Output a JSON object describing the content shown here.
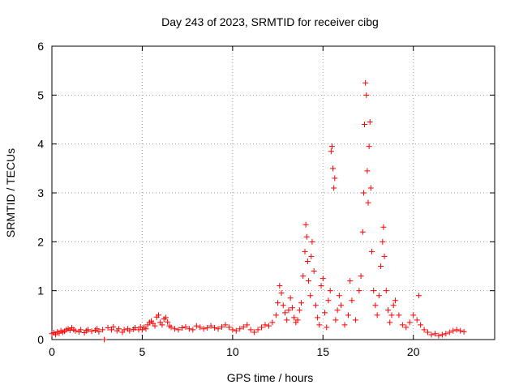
{
  "chart_data": {
    "type": "scatter",
    "title": "Day 243 of 2023, SRMTID for receiver cibg",
    "xlabel": "GPS time / hours",
    "ylabel": "SRMTID / TECUs",
    "xlim": [
      0,
      24.5
    ],
    "ylim": [
      0,
      6
    ],
    "xticks": [
      0,
      5,
      10,
      15,
      20
    ],
    "yticks": [
      0,
      1,
      2,
      3,
      4,
      5,
      6
    ],
    "grid": true,
    "marker": "+",
    "color": "#ff0000",
    "series": [
      {
        "name": "SRMTID",
        "points": [
          [
            0.0,
            0.12
          ],
          [
            0.1,
            0.14
          ],
          [
            0.2,
            0.1
          ],
          [
            0.3,
            0.16
          ],
          [
            0.4,
            0.13
          ],
          [
            0.5,
            0.18
          ],
          [
            0.6,
            0.15
          ],
          [
            0.7,
            0.17
          ],
          [
            0.8,
            0.2
          ],
          [
            0.9,
            0.22
          ],
          [
            1.0,
            0.19
          ],
          [
            1.1,
            0.24
          ],
          [
            1.2,
            0.2
          ],
          [
            1.3,
            0.18
          ],
          [
            1.5,
            0.16
          ],
          [
            1.6,
            0.2
          ],
          [
            1.8,
            0.14
          ],
          [
            1.9,
            0.18
          ],
          [
            2.0,
            0.2
          ],
          [
            2.2,
            0.17
          ],
          [
            2.4,
            0.19
          ],
          [
            2.5,
            0.22
          ],
          [
            2.6,
            0.16
          ],
          [
            2.8,
            0.2
          ],
          [
            2.9,
            0.0
          ],
          [
            3.1,
            0.24
          ],
          [
            3.3,
            0.2
          ],
          [
            3.4,
            0.26
          ],
          [
            3.6,
            0.18
          ],
          [
            3.7,
            0.22
          ],
          [
            3.9,
            0.15
          ],
          [
            4.0,
            0.2
          ],
          [
            4.2,
            0.22
          ],
          [
            4.3,
            0.18
          ],
          [
            4.5,
            0.21
          ],
          [
            4.6,
            0.24
          ],
          [
            4.8,
            0.2
          ],
          [
            4.9,
            0.26
          ],
          [
            5.0,
            0.2
          ],
          [
            5.1,
            0.25
          ],
          [
            5.2,
            0.22
          ],
          [
            5.3,
            0.3
          ],
          [
            5.4,
            0.35
          ],
          [
            5.5,
            0.38
          ],
          [
            5.6,
            0.33
          ],
          [
            5.7,
            0.28
          ],
          [
            5.8,
            0.46
          ],
          [
            5.9,
            0.5
          ],
          [
            6.0,
            0.35
          ],
          [
            6.1,
            0.3
          ],
          [
            6.2,
            0.42
          ],
          [
            6.3,
            0.45
          ],
          [
            6.4,
            0.36
          ],
          [
            6.5,
            0.28
          ],
          [
            6.6,
            0.25
          ],
          [
            6.8,
            0.22
          ],
          [
            7.0,
            0.2
          ],
          [
            7.2,
            0.24
          ],
          [
            7.4,
            0.26
          ],
          [
            7.6,
            0.22
          ],
          [
            7.8,
            0.2
          ],
          [
            8.0,
            0.28
          ],
          [
            8.2,
            0.25
          ],
          [
            8.4,
            0.22
          ],
          [
            8.6,
            0.24
          ],
          [
            8.8,
            0.28
          ],
          [
            9.0,
            0.24
          ],
          [
            9.2,
            0.22
          ],
          [
            9.4,
            0.26
          ],
          [
            9.6,
            0.3
          ],
          [
            9.8,
            0.25
          ],
          [
            10.0,
            0.2
          ],
          [
            10.2,
            0.18
          ],
          [
            10.4,
            0.22
          ],
          [
            10.6,
            0.26
          ],
          [
            10.8,
            0.3
          ],
          [
            11.0,
            0.2
          ],
          [
            11.2,
            0.15
          ],
          [
            11.4,
            0.2
          ],
          [
            11.6,
            0.25
          ],
          [
            11.8,
            0.3
          ],
          [
            12.0,
            0.28
          ],
          [
            12.2,
            0.35
          ],
          [
            12.4,
            0.5
          ],
          [
            12.5,
            0.75
          ],
          [
            12.6,
            1.1
          ],
          [
            12.7,
            0.95
          ],
          [
            12.8,
            0.7
          ],
          [
            12.9,
            0.55
          ],
          [
            13.0,
            0.4
          ],
          [
            13.1,
            0.6
          ],
          [
            13.2,
            0.85
          ],
          [
            13.3,
            0.65
          ],
          [
            13.4,
            0.45
          ],
          [
            13.5,
            0.35
          ],
          [
            13.6,
            0.4
          ],
          [
            13.7,
            0.6
          ],
          [
            13.8,
            0.75
          ],
          [
            13.9,
            1.3
          ],
          [
            14.0,
            1.8
          ],
          [
            14.05,
            2.35
          ],
          [
            14.1,
            2.1
          ],
          [
            14.15,
            1.6
          ],
          [
            14.2,
            1.2
          ],
          [
            14.3,
            0.9
          ],
          [
            14.35,
            1.7
          ],
          [
            14.4,
            2.0
          ],
          [
            14.5,
            1.4
          ],
          [
            14.6,
            0.7
          ],
          [
            14.7,
            0.45
          ],
          [
            14.8,
            0.3
          ],
          [
            14.9,
            1.1
          ],
          [
            15.0,
            1.25
          ],
          [
            15.1,
            0.55
          ],
          [
            15.2,
            0.25
          ],
          [
            15.3,
            0.8
          ],
          [
            15.4,
            1.0
          ],
          [
            15.45,
            3.85
          ],
          [
            15.5,
            3.95
          ],
          [
            15.55,
            3.5
          ],
          [
            15.6,
            3.1
          ],
          [
            15.65,
            3.3
          ],
          [
            15.7,
            0.4
          ],
          [
            15.8,
            0.6
          ],
          [
            15.9,
            0.9
          ],
          [
            16.0,
            0.7
          ],
          [
            16.2,
            0.3
          ],
          [
            16.4,
            0.5
          ],
          [
            16.5,
            1.2
          ],
          [
            16.6,
            0.8
          ],
          [
            16.8,
            0.4
          ],
          [
            17.0,
            1.0
          ],
          [
            17.1,
            1.3
          ],
          [
            17.2,
            2.2
          ],
          [
            17.25,
            3.0
          ],
          [
            17.3,
            4.4
          ],
          [
            17.35,
            5.25
          ],
          [
            17.4,
            5.0
          ],
          [
            17.45,
            3.45
          ],
          [
            17.5,
            2.8
          ],
          [
            17.55,
            3.95
          ],
          [
            17.6,
            4.45
          ],
          [
            17.65,
            3.1
          ],
          [
            17.7,
            1.8
          ],
          [
            17.8,
            1.0
          ],
          [
            17.9,
            0.7
          ],
          [
            18.0,
            0.5
          ],
          [
            18.1,
            0.9
          ],
          [
            18.2,
            1.5
          ],
          [
            18.3,
            2.0
          ],
          [
            18.35,
            2.3
          ],
          [
            18.4,
            1.7
          ],
          [
            18.5,
            1.0
          ],
          [
            18.6,
            0.6
          ],
          [
            18.7,
            0.35
          ],
          [
            18.8,
            0.5
          ],
          [
            18.9,
            0.7
          ],
          [
            19.0,
            0.8
          ],
          [
            19.2,
            0.5
          ],
          [
            19.4,
            0.3
          ],
          [
            19.6,
            0.25
          ],
          [
            19.8,
            0.35
          ],
          [
            20.0,
            0.5
          ],
          [
            20.2,
            0.4
          ],
          [
            20.3,
            0.9
          ],
          [
            20.4,
            0.3
          ],
          [
            20.6,
            0.2
          ],
          [
            20.8,
            0.15
          ],
          [
            21.0,
            0.1
          ],
          [
            21.2,
            0.12
          ],
          [
            21.4,
            0.08
          ],
          [
            21.6,
            0.1
          ],
          [
            21.8,
            0.12
          ],
          [
            22.0,
            0.15
          ],
          [
            22.2,
            0.18
          ],
          [
            22.4,
            0.2
          ],
          [
            22.6,
            0.18
          ],
          [
            22.8,
            0.16
          ]
        ]
      }
    ]
  }
}
